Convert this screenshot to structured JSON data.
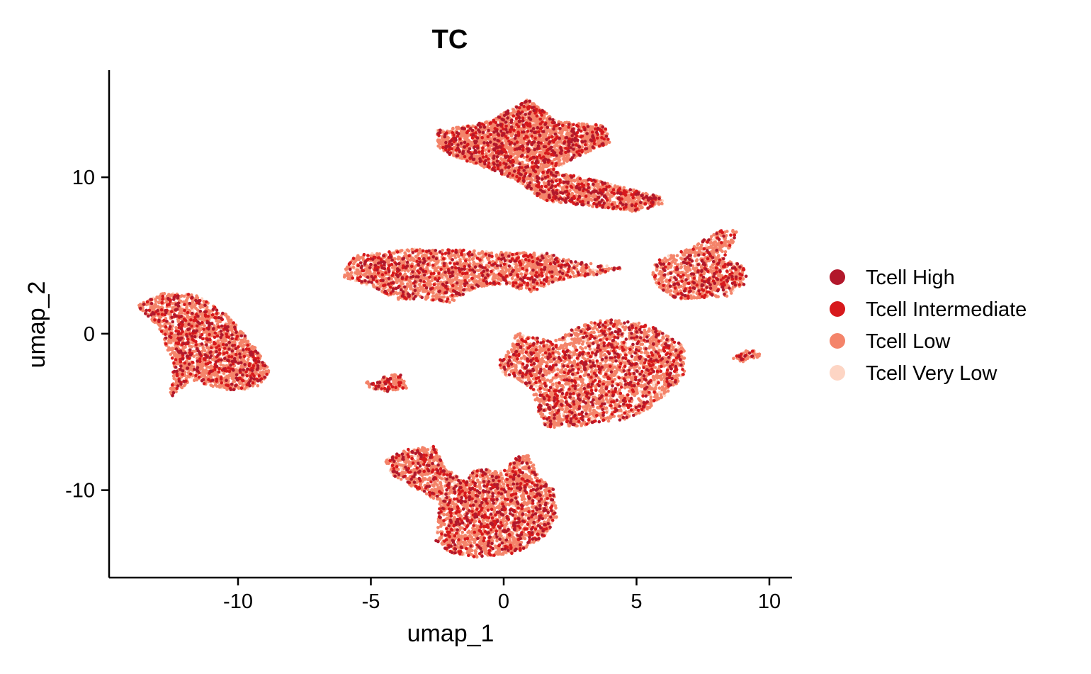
{
  "chart_data": {
    "type": "scatter",
    "title": "TC",
    "xlabel": "umap_1",
    "ylabel": "umap_2",
    "xlim": [
      -14.8,
      10.8
    ],
    "ylim": [
      -15.5,
      16.8
    ],
    "x_ticks": [
      -10,
      -5,
      0,
      5,
      10
    ],
    "x_tick_labels": [
      "-10",
      "-5",
      "0",
      "5",
      "10"
    ],
    "y_ticks": [
      -10,
      0,
      10
    ],
    "y_tick_labels": [
      "-10",
      "0",
      "10"
    ],
    "grid": false,
    "legend_position": "right",
    "series": [
      {
        "name": "Tcell High",
        "color": "#b2182b"
      },
      {
        "name": "Tcell Intermediate",
        "color": "#d7191c"
      },
      {
        "name": "Tcell Low",
        "color": "#f4846a"
      },
      {
        "name": "Tcell Very Low",
        "color": "#fdd5c4"
      }
    ],
    "series_mix": [
      0.1,
      0.12,
      0.66,
      0.12
    ],
    "clusters": [
      {
        "polygon": [
          [
            -13.8,
            1.8
          ],
          [
            -12.8,
            2.6
          ],
          [
            -11.6,
            2.5
          ],
          [
            -10.4,
            1.2
          ],
          [
            -9.3,
            -1.0
          ],
          [
            -8.8,
            -2.4
          ],
          [
            -9.2,
            -3.5
          ],
          [
            -10.4,
            -3.6
          ],
          [
            -11.8,
            -3.0
          ],
          [
            -12.6,
            -4.2
          ],
          [
            -12.4,
            -2.0
          ],
          [
            -13.0,
            0.4
          ]
        ],
        "density": 1
      },
      {
        "polygon": [
          [
            -6.0,
            4.0
          ],
          [
            -5.6,
            5.0
          ],
          [
            -3.5,
            5.4
          ],
          [
            -2.0,
            5.4
          ],
          [
            0.0,
            5.2
          ],
          [
            1.5,
            5.2
          ],
          [
            2.5,
            4.7
          ],
          [
            3.6,
            4.4
          ],
          [
            4.5,
            4.2
          ],
          [
            3.6,
            3.8
          ],
          [
            2.0,
            3.4
          ],
          [
            1.0,
            2.6
          ],
          [
            0.0,
            3.2
          ],
          [
            -1.0,
            3.0
          ],
          [
            -2.0,
            2.0
          ],
          [
            -3.0,
            2.2
          ],
          [
            -4.0,
            2.2
          ],
          [
            -5.0,
            3.0
          ],
          [
            -6.0,
            3.6
          ]
        ],
        "density": 1
      },
      {
        "polygon": [
          [
            -2.5,
            13.0
          ],
          [
            -0.5,
            13.6
          ],
          [
            0.9,
            15.0
          ],
          [
            2.0,
            13.6
          ],
          [
            3.8,
            13.3
          ],
          [
            4.0,
            12.2
          ],
          [
            3.0,
            11.5
          ],
          [
            1.8,
            10.4
          ],
          [
            3.5,
            9.8
          ],
          [
            6.0,
            8.7
          ],
          [
            6.0,
            8.3
          ],
          [
            5.0,
            7.8
          ],
          [
            3.0,
            8.2
          ],
          [
            1.5,
            8.5
          ],
          [
            0.5,
            9.8
          ],
          [
            -0.5,
            10.5
          ],
          [
            -2.0,
            11.4
          ],
          [
            -2.5,
            12.0
          ]
        ],
        "density": 1
      },
      {
        "polygon": [
          [
            5.7,
            4.6
          ],
          [
            6.5,
            5.2
          ],
          [
            7.2,
            5.6
          ],
          [
            8.0,
            6.6
          ],
          [
            8.8,
            6.6
          ],
          [
            8.6,
            5.7
          ],
          [
            8.3,
            4.9
          ],
          [
            9.0,
            4.3
          ],
          [
            9.2,
            3.3
          ],
          [
            8.4,
            2.4
          ],
          [
            6.5,
            2.2
          ],
          [
            5.8,
            3.0
          ],
          [
            5.6,
            3.7
          ]
        ],
        "density": 1
      },
      {
        "polygon": [
          [
            0.5,
            0.1
          ],
          [
            1.8,
            -0.5
          ],
          [
            3.0,
            0.7
          ],
          [
            4.0,
            0.9
          ],
          [
            5.5,
            0.6
          ],
          [
            6.8,
            -0.8
          ],
          [
            6.8,
            -2.8
          ],
          [
            5.5,
            -4.8
          ],
          [
            4.5,
            -5.5
          ],
          [
            3.0,
            -5.9
          ],
          [
            1.6,
            -6.0
          ],
          [
            1.3,
            -5.0
          ],
          [
            1.0,
            -3.4
          ],
          [
            0.0,
            -2.6
          ],
          [
            -0.2,
            -1.8
          ],
          [
            0.2,
            -1.0
          ]
        ],
        "density": 1
      },
      {
        "polygon": [
          [
            -4.5,
            -8.2
          ],
          [
            -3.8,
            -7.4
          ],
          [
            -2.6,
            -7.2
          ],
          [
            -2.2,
            -8.6
          ],
          [
            -1.5,
            -9.4
          ],
          [
            -1.0,
            -8.6
          ],
          [
            0.0,
            -8.8
          ],
          [
            0.4,
            -8.0
          ],
          [
            0.9,
            -7.6
          ],
          [
            1.3,
            -9.0
          ],
          [
            1.9,
            -10.0
          ],
          [
            2.0,
            -11.8
          ],
          [
            1.5,
            -13.0
          ],
          [
            0.5,
            -14.0
          ],
          [
            -1.0,
            -14.3
          ],
          [
            -2.0,
            -14.0
          ],
          [
            -2.6,
            -13.3
          ],
          [
            -2.5,
            -12.4
          ],
          [
            -2.4,
            -10.8
          ],
          [
            -3.4,
            -9.8
          ],
          [
            -4.2,
            -9.0
          ]
        ],
        "density": 1
      },
      {
        "polygon": [
          [
            -5.3,
            -3.0
          ],
          [
            -4.8,
            -3.2
          ],
          [
            -4.4,
            -2.6
          ],
          [
            -3.9,
            -2.5
          ],
          [
            -3.6,
            -3.5
          ],
          [
            -4.4,
            -3.7
          ],
          [
            -5.0,
            -3.5
          ]
        ],
        "density": 0.5
      },
      {
        "polygon": [
          [
            8.6,
            -1.6
          ],
          [
            9.2,
            -1.0
          ],
          [
            9.7,
            -1.2
          ],
          [
            9.6,
            -1.5
          ],
          [
            9.0,
            -1.8
          ]
        ],
        "density": 0.3
      }
    ]
  }
}
